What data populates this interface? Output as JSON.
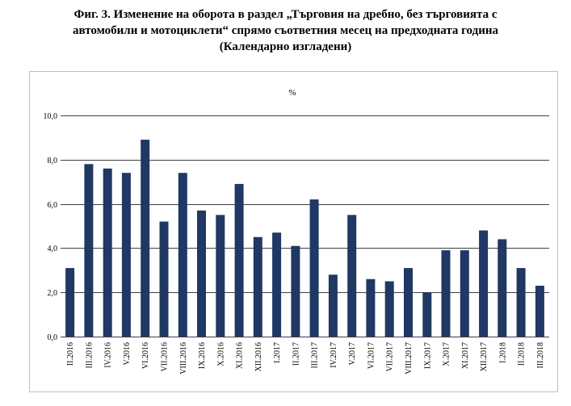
{
  "title_lines": [
    "Фиг. 3. Изменение на оборота в раздел „Търговия на дребно, без търговията с",
    "автомобили и мотоциклети“ спрямо съответния месец на предходната година",
    "(Календарно изгладени)"
  ],
  "chart_data": {
    "type": "bar",
    "unit_label": "%",
    "ylim": [
      0,
      10
    ],
    "yticks": [
      "0,0",
      "2,0",
      "4,0",
      "6,0",
      "8,0",
      "10,0"
    ],
    "ytick_values": [
      0,
      2,
      4,
      6,
      8,
      10
    ],
    "grid": true,
    "bar_color": "#1f3864",
    "categories": [
      "II.2016",
      "III.2016",
      "IV.2016",
      "V.2016",
      "VI.2016",
      "VII.2016",
      "VIII.2016",
      "IX.2016",
      "X.2016",
      "XI.2016",
      "XII.2016",
      "I.2017",
      "II.2017",
      "III.2017",
      "IV.2017",
      "V.2017",
      "VI.2017",
      "VII.2017",
      "VIII.2017",
      "IX.2017",
      "X.2017",
      "XI.2017",
      "XII.2017",
      "I.2018",
      "II.2018",
      "III.2018"
    ],
    "values": [
      3.1,
      7.8,
      7.6,
      7.4,
      8.9,
      5.2,
      7.4,
      5.7,
      5.5,
      6.9,
      4.5,
      4.7,
      4.1,
      6.2,
      2.8,
      5.5,
      2.6,
      2.5,
      3.1,
      2.0,
      3.9,
      3.9,
      4.8,
      4.4,
      3.1,
      2.3
    ]
  }
}
